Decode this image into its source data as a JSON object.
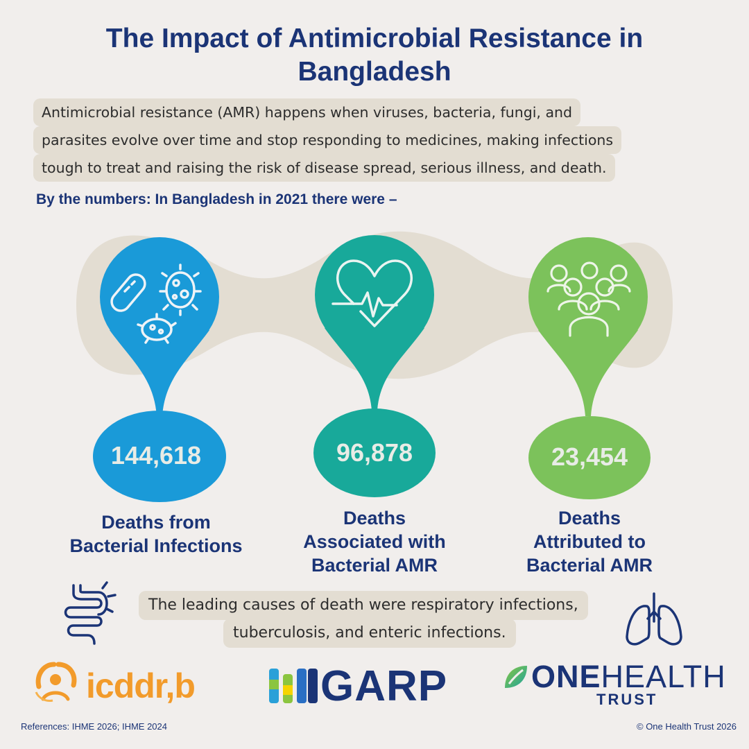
{
  "title": "The Impact of Antimicrobial Resistance in Bangladesh",
  "intro": {
    "line1": "Antimicrobial resistance (AMR) happens when viruses, bacteria, fungi, and",
    "line2": "parasites evolve over time and stop responding to medicines, making infections",
    "line3": "tough to treat and raising the risk of disease spread, serious illness, and death."
  },
  "subheading": "By the numbers: In Bangladesh in 2021 there were –",
  "stats": [
    {
      "value": "144,618",
      "caption_lines": [
        "Deaths from",
        "Bacterial Infections"
      ],
      "icon": "bacteria-icon",
      "color": "#1a9ad8"
    },
    {
      "value": "96,878",
      "caption_lines": [
        "Deaths",
        "Associated with",
        "Bacterial AMR"
      ],
      "icon": "heartbeat-icon",
      "color": "#18a99a"
    },
    {
      "value": "23,454",
      "caption_lines": [
        "Deaths",
        "Attributed to",
        "Bacterial AMR"
      ],
      "icon": "people-group-icon",
      "color": "#7cc25b"
    }
  ],
  "leading_causes": {
    "line1": "The leading causes of death were respiratory infections,",
    "line2": "tuberculosis, and enteric infections."
  },
  "logos": {
    "icddrb": "icddr,b",
    "garp": "GARP",
    "onehealth_main_one": "ONE",
    "onehealth_main_health": "HEALTH",
    "onehealth_sub": "TRUST"
  },
  "footer": {
    "references": "References: IHME 2026; IHME 2024",
    "copyright": "© One Health Trust 2026"
  },
  "colors": {
    "navy": "#1b3476",
    "blue": "#1a9ad8",
    "teal": "#18a99a",
    "green": "#7cc25b",
    "beige": "#e3ddd2"
  }
}
